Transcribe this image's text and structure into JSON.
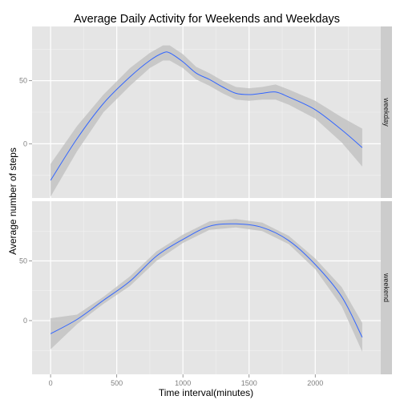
{
  "chart_data": {
    "type": "line",
    "title": "Average Daily Activity for Weekends and Weekdays",
    "xlabel": "Time interval(minutes)",
    "ylabel": "Average number of steps",
    "xlim": [
      -140,
      2495
    ],
    "x_ticks": [
      0,
      500,
      1000,
      1500,
      2000
    ],
    "y_ticks": [
      0,
      50
    ],
    "grid": true,
    "legend": "none",
    "colors": {
      "line": "#3366FF",
      "ribbon": "#BEBEBE",
      "panel_background": "#E5E5E5",
      "grid_major": "#FFFFFF",
      "grid_minor": "#F2F2F2",
      "strip_background": "#CCCCCC",
      "tick_text": "#7F7F7F"
    },
    "facets": [
      {
        "label": "weekday",
        "ylim": [
          -43,
          93
        ],
        "x": [
          0,
          200,
          400,
          600,
          750,
          850,
          900,
          1000,
          1100,
          1200,
          1300,
          1400,
          1500,
          1600,
          1700,
          1800,
          2000,
          2200,
          2355
        ],
        "y": [
          -29,
          4,
          32,
          53,
          66,
          72,
          72,
          65,
          56,
          51,
          45,
          40,
          39,
          40,
          41,
          37,
          27,
          11,
          -3
        ],
        "ci_lower": [
          -42,
          -6,
          25,
          46,
          60,
          66,
          66,
          60,
          51,
          46,
          40,
          35,
          34,
          35,
          35,
          31,
          20,
          1,
          -18
        ],
        "ci_upper": [
          -16,
          14,
          39,
          60,
          72,
          78,
          78,
          71,
          61,
          56,
          50,
          45,
          44,
          45,
          47,
          43,
          34,
          21,
          12
        ]
      },
      {
        "label": "weekend",
        "ylim": [
          -45,
          100
        ],
        "x": [
          0,
          200,
          400,
          600,
          800,
          1000,
          1200,
          1400,
          1600,
          1800,
          2000,
          2200,
          2355
        ],
        "y": [
          -11,
          1,
          17,
          33,
          54,
          68,
          79,
          81,
          78,
          67,
          47,
          20,
          -14
        ],
        "ci_lower": [
          -24,
          -3,
          14,
          29,
          50,
          65,
          76,
          78,
          75,
          64,
          43,
          12,
          -26
        ],
        "ci_upper": [
          2,
          5,
          20,
          37,
          58,
          72,
          83,
          85,
          82,
          71,
          52,
          28,
          -2
        ]
      }
    ]
  }
}
